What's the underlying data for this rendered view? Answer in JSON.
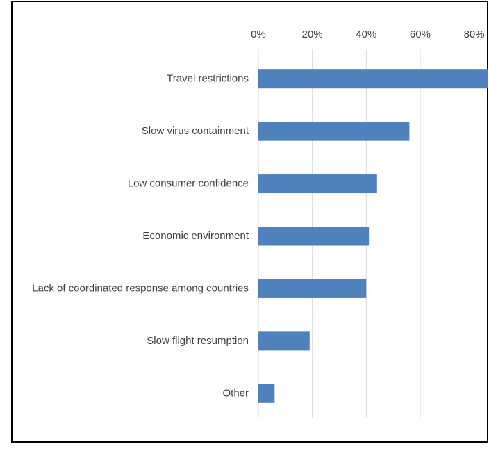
{
  "chart_data": {
    "type": "bar",
    "orientation": "horizontal",
    "categories": [
      "Travel restrictions",
      "Slow virus containment",
      "Low consumer confidence",
      "Economic environment",
      "Lack of coordinated response among countries",
      "Slow flight resumption",
      "Other"
    ],
    "values": [
      85,
      56,
      44,
      41,
      40,
      19,
      6
    ],
    "color": "#4f81bd",
    "xlim": [
      0,
      85
    ],
    "xticks": [
      {
        "value": 0,
        "label": "0%"
      },
      {
        "value": 20,
        "label": "20%"
      },
      {
        "value": 40,
        "label": "40%"
      },
      {
        "value": 60,
        "label": "60%"
      },
      {
        "value": 80,
        "label": "80%"
      }
    ],
    "grid": true
  }
}
